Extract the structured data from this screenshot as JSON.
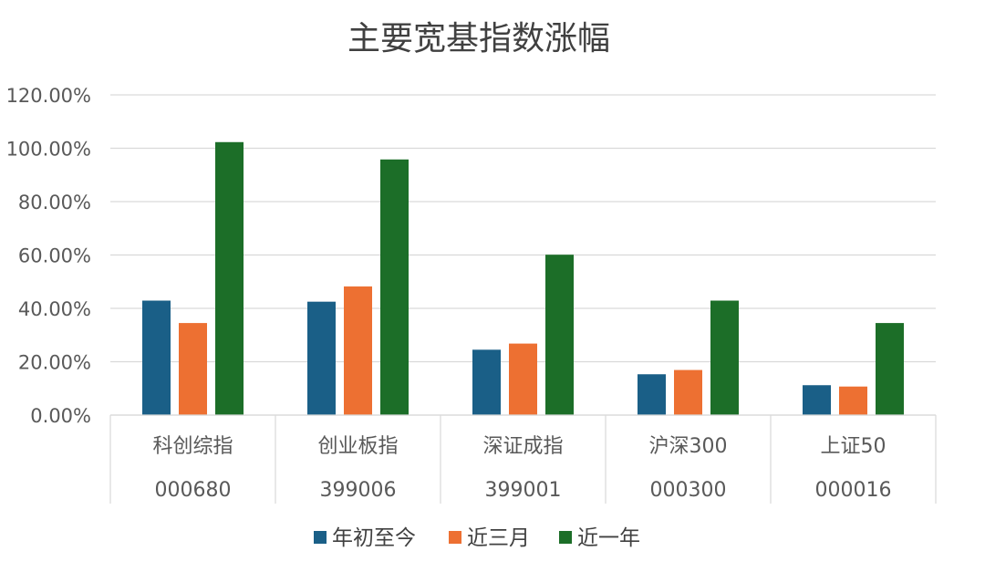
{
  "chart_data": {
    "type": "bar",
    "title": "主要宽基指数涨幅",
    "categories": [
      {
        "name": "科创综指",
        "code": "000680"
      },
      {
        "name": "创业板指",
        "code": "399006"
      },
      {
        "name": "深证成指",
        "code": "399001"
      },
      {
        "name": "沪深300",
        "code": "000300"
      },
      {
        "name": "上证50",
        "code": "000016"
      }
    ],
    "series": [
      {
        "name": "年初至今",
        "color": "#1a5f87",
        "values": [
          42.9,
          42.5,
          24.5,
          15.3,
          11.2
        ]
      },
      {
        "name": "近三月",
        "color": "#ed7032",
        "values": [
          34.5,
          48.2,
          26.8,
          16.9,
          10.7
        ]
      },
      {
        "name": "近一年",
        "color": "#1c6e28",
        "values": [
          102.3,
          95.8,
          60.1,
          42.9,
          34.5
        ]
      }
    ],
    "ylim": [
      0,
      120
    ],
    "yticks": [
      "0.00%",
      "20.00%",
      "40.00%",
      "60.00%",
      "80.00%",
      "100.00%",
      "120.00%"
    ],
    "ytick_values": [
      0,
      20,
      40,
      60,
      80,
      100,
      120
    ],
    "grid": true,
    "legend_position": "bottom"
  }
}
